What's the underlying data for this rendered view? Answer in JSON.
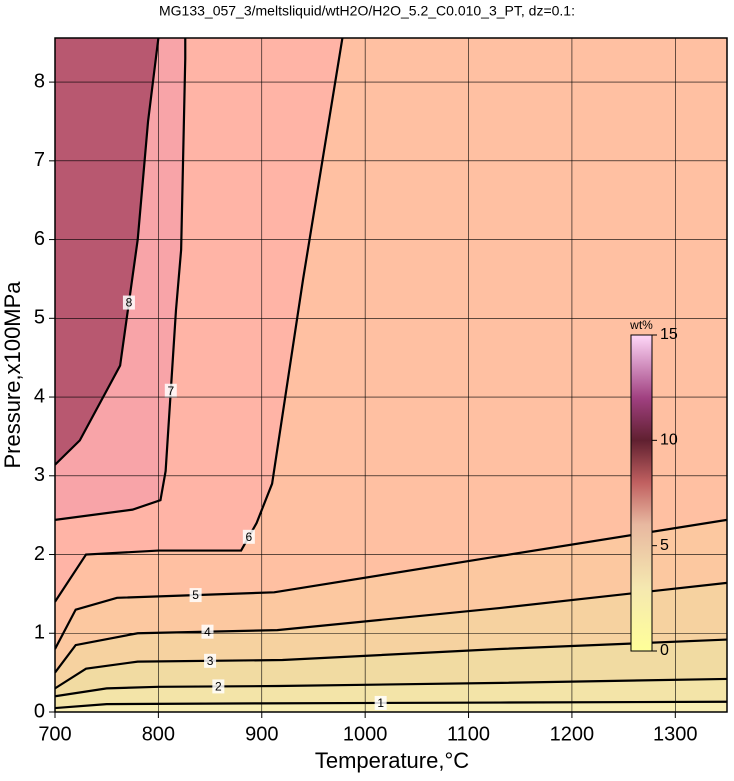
{
  "chart_data": {
    "type": "contour",
    "title": "MG133_057_3/meltsliquid/wtH2O/H2O_5.2_C0.010_3_PT, dz=0.1:",
    "xlabel": "Temperature,°C",
    "ylabel": "Pressure,x100MPa",
    "xlim": [
      700,
      1350
    ],
    "xticks": [
      700,
      800,
      900,
      1000,
      1100,
      1200,
      1300
    ],
    "ylim": [
      0,
      8.56
    ],
    "yticks": [
      0,
      1,
      2,
      3,
      4,
      5,
      6,
      7,
      8
    ],
    "grid": true,
    "background": "#f8eeb4",
    "line_color": "#000000",
    "contours": [
      {
        "level": 1,
        "color": "#f3e4a8",
        "x": [
          700,
          750,
          900,
          1130,
          1350
        ],
        "y": [
          0.05,
          0.1,
          0.11,
          0.12,
          0.13
        ]
      },
      {
        "level": 2,
        "color": "#f1dba2",
        "x": [
          700,
          750,
          800,
          916,
          1132,
          1350
        ],
        "y": [
          0.2,
          0.3,
          0.32,
          0.33,
          0.37,
          0.42
        ]
      },
      {
        "level": 3,
        "color": "#f6d2a0",
        "x": [
          700,
          730,
          780,
          920,
          1130,
          1350
        ],
        "y": [
          0.3,
          0.55,
          0.64,
          0.66,
          0.8,
          0.92
        ]
      },
      {
        "level": 4,
        "color": "#fcc8a0",
        "x": [
          700,
          720,
          780,
          915,
          1130,
          1350
        ],
        "y": [
          0.5,
          0.85,
          1.0,
          1.04,
          1.32,
          1.64
        ]
      },
      {
        "level": 5,
        "color": "#ffc0a2",
        "x": [
          700,
          720,
          760,
          912,
          1130,
          1350
        ],
        "y": [
          0.8,
          1.3,
          1.45,
          1.52,
          1.98,
          2.44
        ]
      },
      {
        "level": 6,
        "color": "#ffb4a6",
        "x": [
          700,
          730,
          800,
          880,
          895,
          910,
          940,
          978
        ],
        "y": [
          1.4,
          2.0,
          2.05,
          2.05,
          2.4,
          2.9,
          5.5,
          8.56
        ]
      },
      {
        "level": 7,
        "color": "#f8a4a8",
        "x": [
          700,
          775,
          802,
          807,
          817,
          822,
          826,
          826
        ],
        "y": [
          2.44,
          2.57,
          2.69,
          3.06,
          5.1,
          5.87,
          8.3,
          8.56
        ]
      },
      {
        "level": 8,
        "color": "#b85870",
        "x": [
          700,
          724,
          763,
          780,
          790,
          800
        ],
        "y": [
          3.14,
          3.45,
          4.4,
          6.0,
          7.5,
          8.56
        ]
      }
    ],
    "colorbar": {
      "label": "wt%",
      "lim": [
        0,
        15
      ],
      "ticks": [
        0,
        5,
        10,
        15
      ],
      "stops": [
        0,
        3,
        6,
        8,
        10,
        12,
        15
      ],
      "colors": [
        "#ffff99",
        "#f5e8b0",
        "#e8b8a0",
        "#c06060",
        "#602030",
        "#a04080",
        "#ffd8f8"
      ]
    }
  }
}
